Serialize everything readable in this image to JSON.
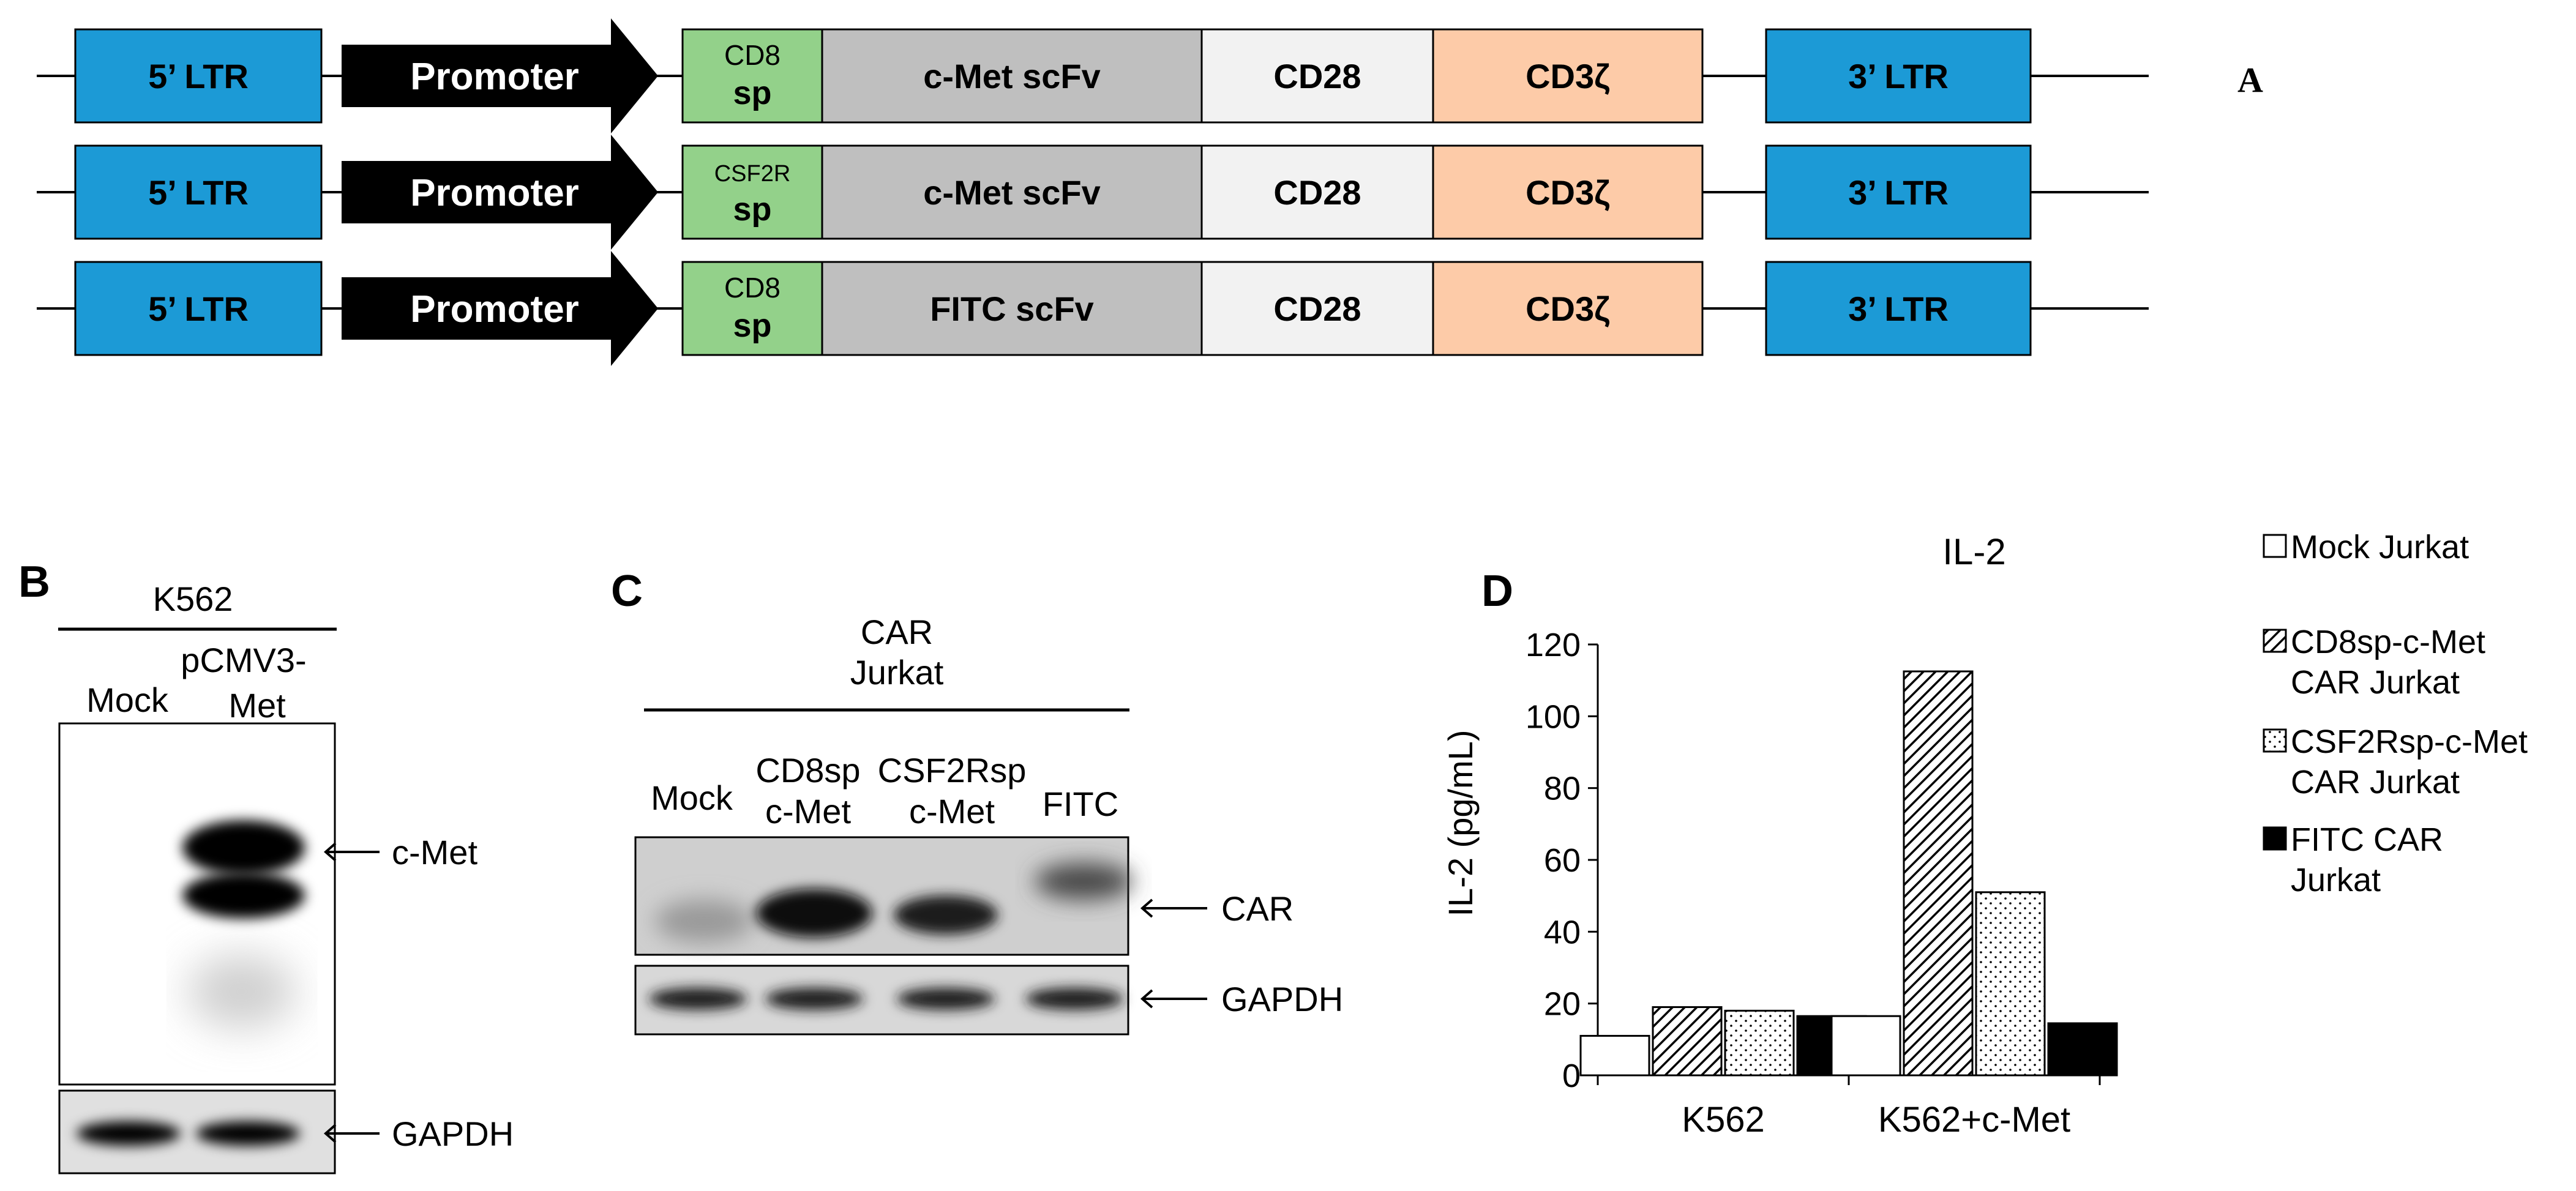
{
  "panel_a": {
    "label": "A",
    "colors": {
      "ltr": "#1c9ad6",
      "sp": "#93d18a",
      "scfv": "#bfbfbf",
      "cd28": "#f2f2f2",
      "cd3z": "#fdcba8",
      "promoter": "#000000"
    },
    "constructs": [
      {
        "ltr5": "5’ LTR",
        "promoter": "Promoter",
        "sp_top": "CD8",
        "sp_bottom": "sp",
        "scfv": "c-Met scFv",
        "cd28": "CD28",
        "cd3z": "CD3ζ",
        "ltr3": "3’ LTR"
      },
      {
        "ltr5": "5’ LTR",
        "promoter": "Promoter",
        "sp_top": "CSF2R",
        "sp_bottom": "sp",
        "scfv": "c-Met scFv",
        "cd28": "CD28",
        "cd3z": "CD3ζ",
        "ltr3": "3’ LTR"
      },
      {
        "ltr5": "5’ LTR",
        "promoter": "Promoter",
        "sp_top": "CD8",
        "sp_bottom": "sp",
        "scfv": "FITC scFv",
        "cd28": "CD28",
        "cd3z": "CD3ζ",
        "ltr3": "3’ LTR"
      }
    ]
  },
  "panel_b": {
    "label": "B",
    "header": "K562",
    "lanes": [
      "Mock",
      "pCMV3-",
      "Met"
    ],
    "band_labels": [
      "c-Met",
      "GAPDH"
    ]
  },
  "panel_c": {
    "label": "C",
    "header_line1": "CAR",
    "header_line2": "Jurkat",
    "lanes": [
      {
        "line1": "Mock",
        "line2": ""
      },
      {
        "line1": "CD8sp",
        "line2": "c-Met"
      },
      {
        "line1": "CSF2Rsp",
        "line2": "c-Met"
      },
      {
        "line1": "FITC",
        "line2": ""
      }
    ],
    "band_labels": [
      "CAR",
      "GAPDH"
    ]
  },
  "panel_d": {
    "label": "D",
    "chart_data": {
      "type": "bar",
      "title": "IL-2",
      "ylabel": "IL-2 (pg/mL)",
      "xlabel": "",
      "ylim": [
        0,
        120
      ],
      "yticks": [
        0,
        20,
        40,
        60,
        80,
        100,
        120
      ],
      "categories": [
        "K562",
        "K562+c-Met"
      ],
      "series": [
        {
          "name": "Mock Jurkat",
          "values": [
            11,
            16.5
          ],
          "fill": "#ffffff",
          "pattern": "none"
        },
        {
          "name": "CD8sp-c-Met CAR Jurkat",
          "legend_lines": [
            "CD8sp-c-Met",
            "CAR Jurkat"
          ],
          "values": [
            19,
            112.5
          ],
          "fill": "#ffffff",
          "pattern": "hatch"
        },
        {
          "name": "CSF2Rsp-c-Met CAR Jurkat",
          "legend_lines": [
            "CSF2Rsp-c-Met",
            "CAR Jurkat"
          ],
          "values": [
            18,
            51
          ],
          "fill": "#ffffff",
          "pattern": "dots"
        },
        {
          "name": "FITC CAR Jurkat",
          "legend_lines": [
            "FITC CAR",
            "Jurkat"
          ],
          "values": [
            16.5,
            14.5
          ],
          "fill": "#000000",
          "pattern": "none"
        }
      ],
      "legend_position": "right"
    }
  }
}
